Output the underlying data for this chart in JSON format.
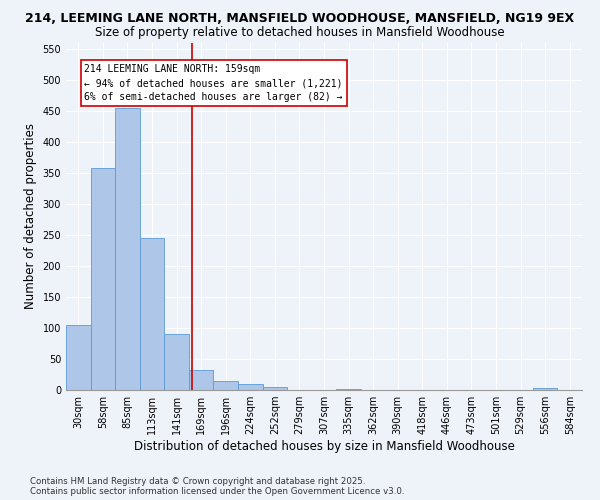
{
  "title": "214, LEEMING LANE NORTH, MANSFIELD WOODHOUSE, MANSFIELD, NG19 9EX",
  "subtitle": "Size of property relative to detached houses in Mansfield Woodhouse",
  "xlabel": "Distribution of detached houses by size in Mansfield Woodhouse",
  "ylabel": "Number of detached properties",
  "bar_values": [
    104,
    357,
    455,
    245,
    90,
    32,
    14,
    9,
    5,
    0,
    0,
    2,
    0,
    0,
    0,
    0,
    0,
    0,
    0,
    3,
    0
  ],
  "bar_labels": [
    "30sqm",
    "58sqm",
    "85sqm",
    "113sqm",
    "141sqm",
    "169sqm",
    "196sqm",
    "224sqm",
    "252sqm",
    "279sqm",
    "307sqm",
    "335sqm",
    "362sqm",
    "390sqm",
    "418sqm",
    "446sqm",
    "473sqm",
    "501sqm",
    "529sqm",
    "556sqm",
    "584sqm"
  ],
  "bar_color": "#aec6e8",
  "bar_edge_color": "#5b9bd5",
  "vline_x": 4.64,
  "vline_color": "#cc0000",
  "annotation_text": "214 LEEMING LANE NORTH: 159sqm\n← 94% of detached houses are smaller (1,221)\n6% of semi-detached houses are larger (82) →",
  "annotation_box_color": "#ffffff",
  "annotation_box_edge_color": "#cc0000",
  "ylim": [
    0,
    560
  ],
  "yticks": [
    0,
    50,
    100,
    150,
    200,
    250,
    300,
    350,
    400,
    450,
    500,
    550
  ],
  "footer": "Contains HM Land Registry data © Crown copyright and database right 2025.\nContains public sector information licensed under the Open Government Licence v3.0.",
  "bg_color": "#eef2f9",
  "plot_bg_color": "#eef2f9",
  "title_fontsize": 9,
  "subtitle_fontsize": 8.5,
  "axis_label_fontsize": 8.5,
  "tick_fontsize": 7
}
